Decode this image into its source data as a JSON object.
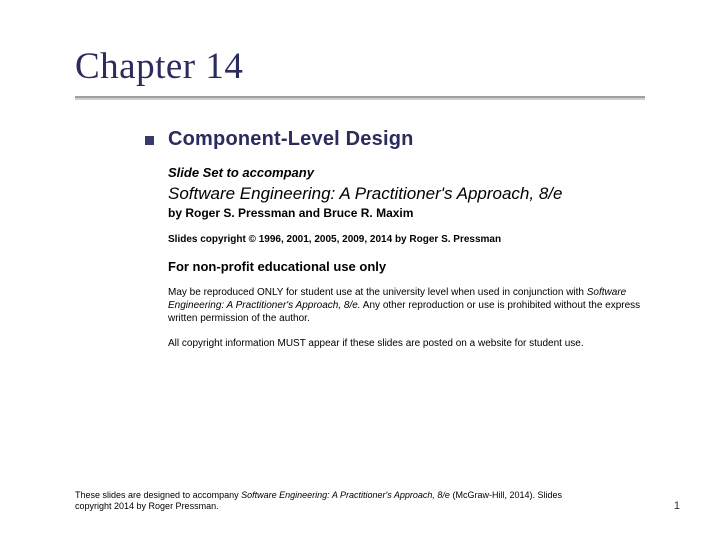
{
  "colors": {
    "title_color": "#2b2b5e",
    "bullet_color": "#3a3a6a",
    "rule_color": "#a0a0a0",
    "background": "#ffffff"
  },
  "title": "Chapter 14",
  "subtitle": "Component-Level Design",
  "accompany": "Slide Set to accompany",
  "book_title": "Software Engineering: A Practitioner's Approach, 8/e",
  "authors": "by Roger S. Pressman and Bruce R. Maxim",
  "copyright_line": "Slides copyright © 1996, 2001, 2005, 2009, 2014 by Roger S. Pressman",
  "nonprofit": "For non-profit educational use only",
  "repro_pre": "May be reproduced ONLY for student use at the university level when used in conjunction with ",
  "repro_book": "Software Engineering: A Practitioner's Approach, 8/e.",
  "repro_post": " Any other reproduction or use is prohibited without the express written permission of the author.",
  "must_appear": "All copyright information MUST appear if these slides are posted on a website for student use.",
  "footer_pre": "These slides are designed to accompany ",
  "footer_book": "Software Engineering: A Practitioner's Approach, 8/e",
  "footer_post": " (McGraw-Hill, 2014). Slides copyright 2014 by Roger Pressman.",
  "page_number": "1",
  "typography": {
    "title_fontsize": 37,
    "subtitle_fontsize": 20,
    "book_title_fontsize": 17,
    "body_small_fontsize": 10,
    "footer_fontsize": 9
  }
}
